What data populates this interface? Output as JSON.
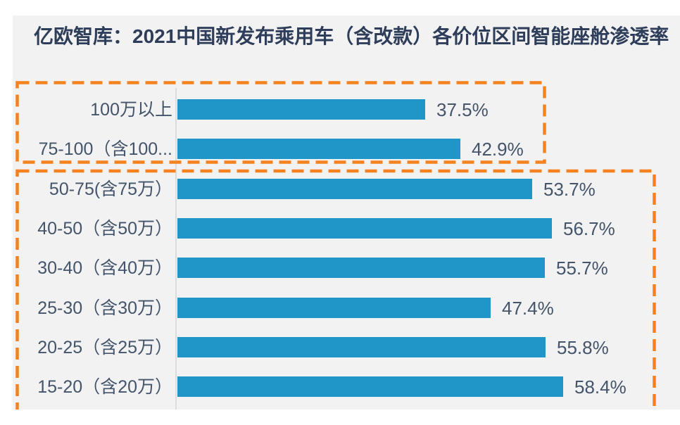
{
  "page": {
    "title": "亿欧智库：2021中国新发布乘用车（含改款）各价位区间智能座舱渗透率"
  },
  "chart_data": {
    "type": "bar",
    "orientation": "horizontal",
    "title": "亿欧智库：2021中国新发布乘用车（含改款）各价位区间智能座舱渗透率",
    "categories": [
      "100万以上",
      "75-100（含100...",
      "50-75(含75万）",
      "40-50（含50万）",
      "30-40（含40万）",
      "25-30（含30万）",
      "20-25（含25万）",
      "15-20（含20万）"
    ],
    "values": [
      37.5,
      42.9,
      53.7,
      56.7,
      55.7,
      47.4,
      55.8,
      58.4
    ],
    "value_labels": [
      "37.5%",
      "42.9%",
      "53.7%",
      "56.7%",
      "55.7%",
      "47.4%",
      "55.8%",
      "58.4%"
    ],
    "unit": "%",
    "xlim": [
      0,
      62
    ],
    "grid": false,
    "legend": null,
    "annotations": [
      {
        "name": "dashed-box-top",
        "rows": [
          "100万以上",
          "75-100（含100..."
        ]
      },
      {
        "name": "dashed-box-bottom",
        "rows": [
          "50-75(含75万）",
          "40-50（含50万）",
          "30-40（含40万）",
          "25-30（含30万）",
          "20-25（含25万）",
          "15-20（含20万）"
        ]
      }
    ]
  },
  "colors": {
    "bar": "#2095C8",
    "panel_background": "#F2F2F2",
    "dashed_box": "#F5821F",
    "title_text": "#2E3D59",
    "label_text": "#44546A",
    "axis_line": "#DCDCDC"
  }
}
